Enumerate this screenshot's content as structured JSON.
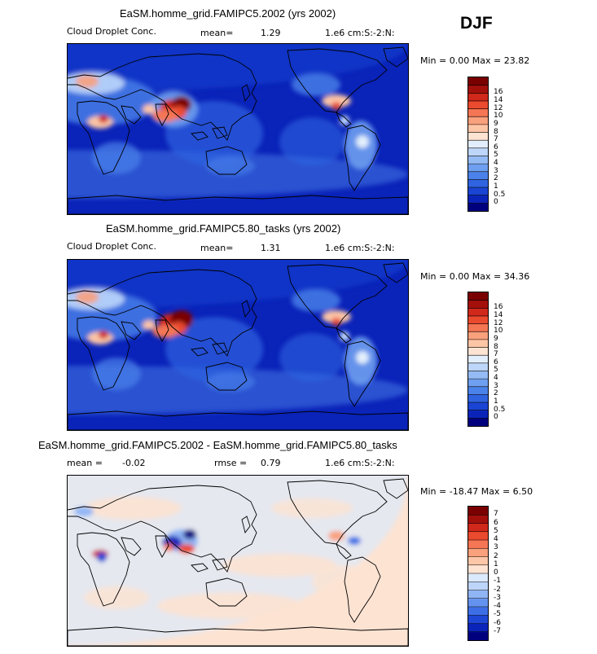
{
  "season": "DJF",
  "colors": {
    "abs_levels": [
      "#00007f",
      "#0a23b9",
      "#1a44d4",
      "#2f63e0",
      "#4b82ea",
      "#6e9ff0",
      "#95bbf5",
      "#bdd6fa",
      "#e2eefc",
      "#fde3d2",
      "#fcc5a6",
      "#f9a07c",
      "#f57654",
      "#ea4a2e",
      "#d0281a",
      "#a3100c",
      "#7a0000"
    ],
    "diff_levels": [
      "#00007f",
      "#0a23b9",
      "#1f47d6",
      "#3d6ee6",
      "#6493ef",
      "#90b5f5",
      "#bed5fa",
      "#dbe9fc",
      "#fde3d2",
      "#fcc7a8",
      "#f9a07c",
      "#f57654",
      "#ea4a2e",
      "#d0281a",
      "#a3100c",
      "#7a0000"
    ]
  },
  "chart_data": [
    {
      "type": "heatmap",
      "title": "EaSM.homme_grid.FAMIPC5.2002 (yrs 2002)",
      "variable": "Cloud Droplet Conc.",
      "mean_label": "mean=",
      "mean": "1.29",
      "units": "1.e6 cm:S:-2:N:",
      "min_label": "Min =",
      "min": "0.00",
      "max_label": "Max =",
      "max": "23.82",
      "colorbar_ticks": [
        "0",
        "0.5",
        "1",
        "2",
        "3",
        "4",
        "5",
        "6",
        "7",
        "8",
        "9",
        "10",
        "12",
        "14",
        "16"
      ]
    },
    {
      "type": "heatmap",
      "title": "EaSM.homme_grid.FAMIPC5.80_tasks (yrs 2002)",
      "variable": "Cloud Droplet Conc.",
      "mean_label": "mean=",
      "mean": "1.31",
      "units": "1.e6 cm:S:-2:N:",
      "min_label": "Min =",
      "min": "0.00",
      "max_label": "Max =",
      "max": "34.36",
      "colorbar_ticks": [
        "0",
        "0.5",
        "1",
        "2",
        "3",
        "4",
        "5",
        "6",
        "7",
        "8",
        "9",
        "10",
        "12",
        "14",
        "16"
      ]
    },
    {
      "type": "heatmap",
      "title": "EaSM.homme_grid.FAMIPC5.2002 - EaSM.homme_grid.FAMIPC5.80_tasks",
      "mean_label": "mean =",
      "mean": "-0.02",
      "rmse_label": "rmse =",
      "rmse": "0.79",
      "units": "1.e6 cm:S:-2:N:",
      "min_label": "Min =",
      "min": "-18.47",
      "max_label": "Max =",
      "max": "6.50",
      "colorbar_ticks": [
        "-7",
        "-6",
        "-5",
        "-4",
        "-3",
        "-2",
        "-1",
        "0",
        "1",
        "2",
        "3",
        "4",
        "5",
        "6",
        "7"
      ]
    }
  ]
}
